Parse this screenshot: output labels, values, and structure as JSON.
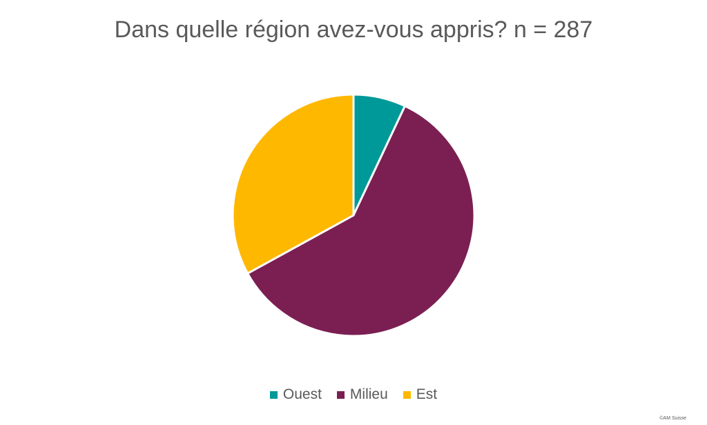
{
  "title": "Dans quelle région avez-vous appris? n = 287",
  "credit": "©AM Suisse",
  "chart_data": {
    "type": "pie",
    "title": "Dans quelle région avez-vous appris? n = 287",
    "categories": [
      "Ouest",
      "Milieu",
      "Est"
    ],
    "values": [
      7,
      60,
      33
    ],
    "colors": [
      "#009999",
      "#7B1F53",
      "#FFB800"
    ],
    "legend_position": "bottom",
    "start_angle": "top, clockwise"
  }
}
